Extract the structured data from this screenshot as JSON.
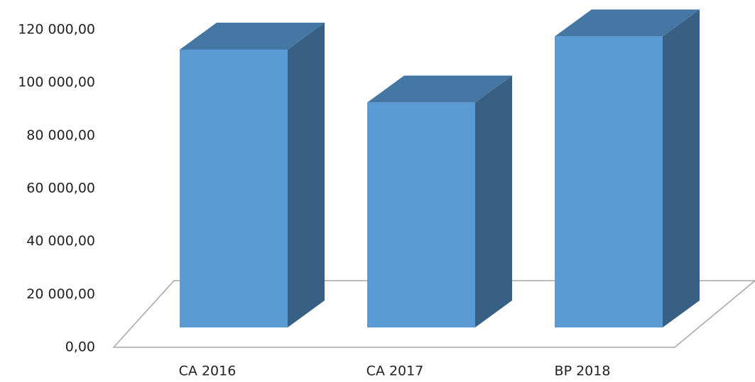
{
  "chart_data": {
    "type": "bar3d",
    "categories": [
      "CA 2016",
      "CA 2017",
      "BP 2018"
    ],
    "values": [
      105000,
      85000,
      110000
    ],
    "color": "#5b9bd5",
    "ylim": [
      0,
      120000
    ],
    "yticks": [
      {
        "value": 0,
        "label": "0,00"
      },
      {
        "value": 20000,
        "label": "20 000,00"
      },
      {
        "value": 40000,
        "label": "40 000,00"
      },
      {
        "value": 60000,
        "label": "60 000,00"
      },
      {
        "value": 80000,
        "label": "80 000,00"
      },
      {
        "value": 100000,
        "label": "100 000,00"
      },
      {
        "value": 120000,
        "label": "120 000,00"
      }
    ]
  }
}
